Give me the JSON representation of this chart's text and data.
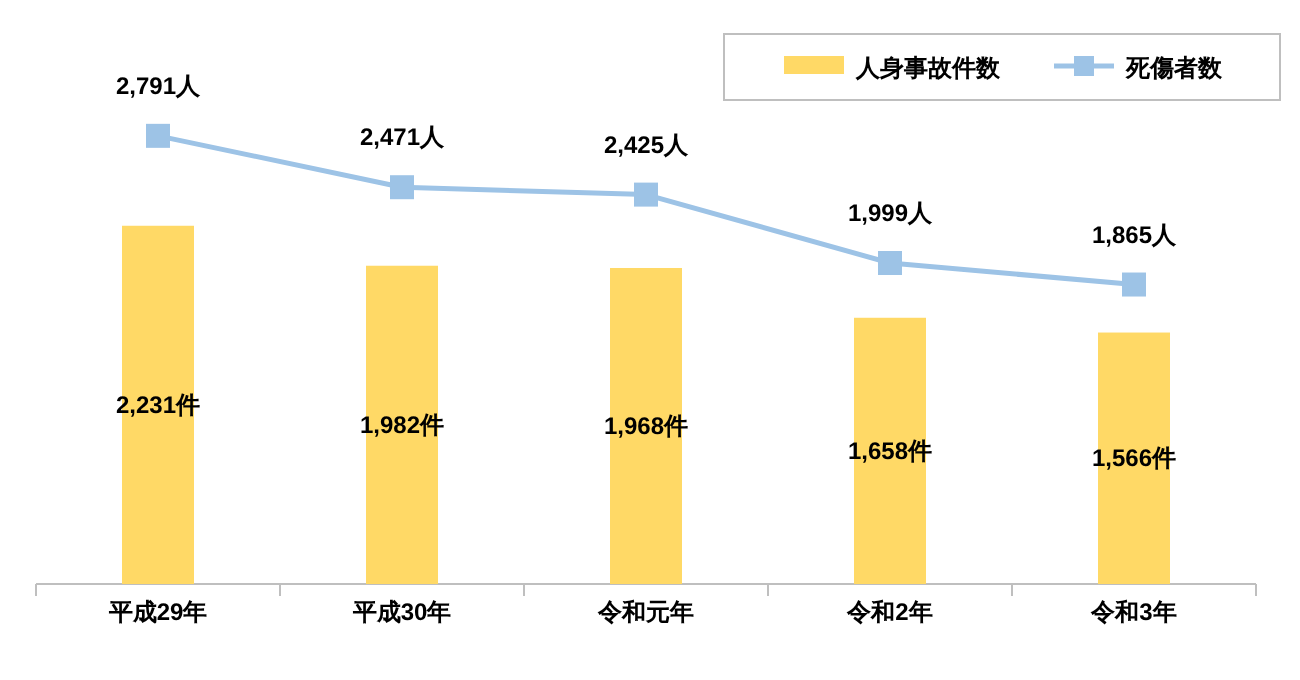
{
  "chart_data": {
    "type": "bar",
    "categories": [
      "平成29年",
      "平成30年",
      "令和元年",
      "令和2年",
      "令和3年"
    ],
    "series": [
      {
        "name": "人身事故件数",
        "color": "#ffd966",
        "values": [
          2231,
          1982,
          1968,
          1658,
          1566
        ],
        "value_labels": [
          "2,231件",
          "1,982件",
          "1,968件",
          "1,658件",
          "1,566件"
        ]
      },
      {
        "name": "死傷者数",
        "type": "line",
        "color": "#9dc3e6",
        "values": [
          2791,
          2471,
          2425,
          1999,
          1865
        ],
        "value_labels": [
          "2,791人",
          "2,471人",
          "2,425人",
          "1,999人",
          "1,865人"
        ]
      }
    ],
    "legend": "top right",
    "tick_labels": "x",
    "marker": "square"
  }
}
